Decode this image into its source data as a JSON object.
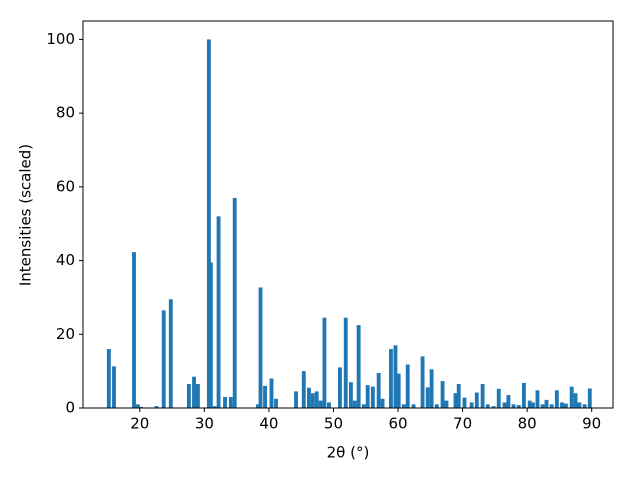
{
  "chart_data": {
    "type": "bar",
    "xlabel": "2θ (°)",
    "ylabel": "Intensities (scaled)",
    "color": "#1f77b4",
    "x": [
      15.2,
      16.0,
      19.1,
      19.7,
      20.2,
      22.6,
      23.7,
      24.8,
      27.6,
      28.4,
      29.0,
      30.7,
      31.0,
      31.6,
      32.2,
      33.2,
      34.1,
      34.7,
      38.3,
      38.7,
      39.4,
      40.4,
      41.1,
      44.2,
      45.4,
      46.2,
      46.8,
      47.4,
      48.0,
      48.6,
      49.3,
      51.0,
      51.9,
      52.7,
      53.3,
      53.9,
      54.7,
      55.3,
      56.1,
      57.0,
      57.6,
      58.9,
      59.6,
      60.1,
      60.9,
      61.5,
      62.4,
      63.8,
      64.6,
      65.2,
      66.0,
      66.9,
      67.5,
      68.9,
      69.4,
      70.3,
      71.4,
      72.2,
      73.1,
      73.9,
      74.8,
      75.6,
      76.5,
      77.1,
      77.9,
      78.7,
      79.5,
      80.4,
      80.9,
      81.6,
      82.4,
      83.0,
      83.8,
      84.6,
      85.4,
      86.0,
      86.9,
      87.5,
      88.1,
      88.9,
      89.7
    ],
    "values": [
      16,
      11.3,
      42.3,
      1,
      0.3,
      0.5,
      26.5,
      29.5,
      6.5,
      8.5,
      6.5,
      100,
      39.5,
      0.5,
      52,
      3,
      3,
      57,
      1,
      32.7,
      6,
      8,
      2.5,
      4.5,
      10,
      5.5,
      4,
      4.5,
      2,
      24.5,
      1.5,
      11,
      24.5,
      7,
      2,
      22.5,
      1,
      6.2,
      5.8,
      9.5,
      2.5,
      16,
      17,
      9.3,
      1,
      11.8,
      1,
      14,
      5.6,
      10.5,
      1,
      7.3,
      2,
      4,
      6.5,
      2.8,
      1.5,
      4.2,
      6.5,
      1,
      0.5,
      5.2,
      1.5,
      3.5,
      1,
      0.8,
      6.8,
      2,
      1.5,
      4.8,
      1,
      2.2,
      1,
      4.8,
      1.5,
      1.2,
      5.8,
      4,
      1.5,
      1,
      5.3
    ],
    "xlim": [
      11.2,
      93.3
    ],
    "ylim": [
      0,
      105
    ],
    "xticks": [
      20,
      30,
      40,
      50,
      60,
      70,
      80,
      90
    ],
    "yticks": [
      0,
      20,
      40,
      60,
      80,
      100
    ]
  }
}
